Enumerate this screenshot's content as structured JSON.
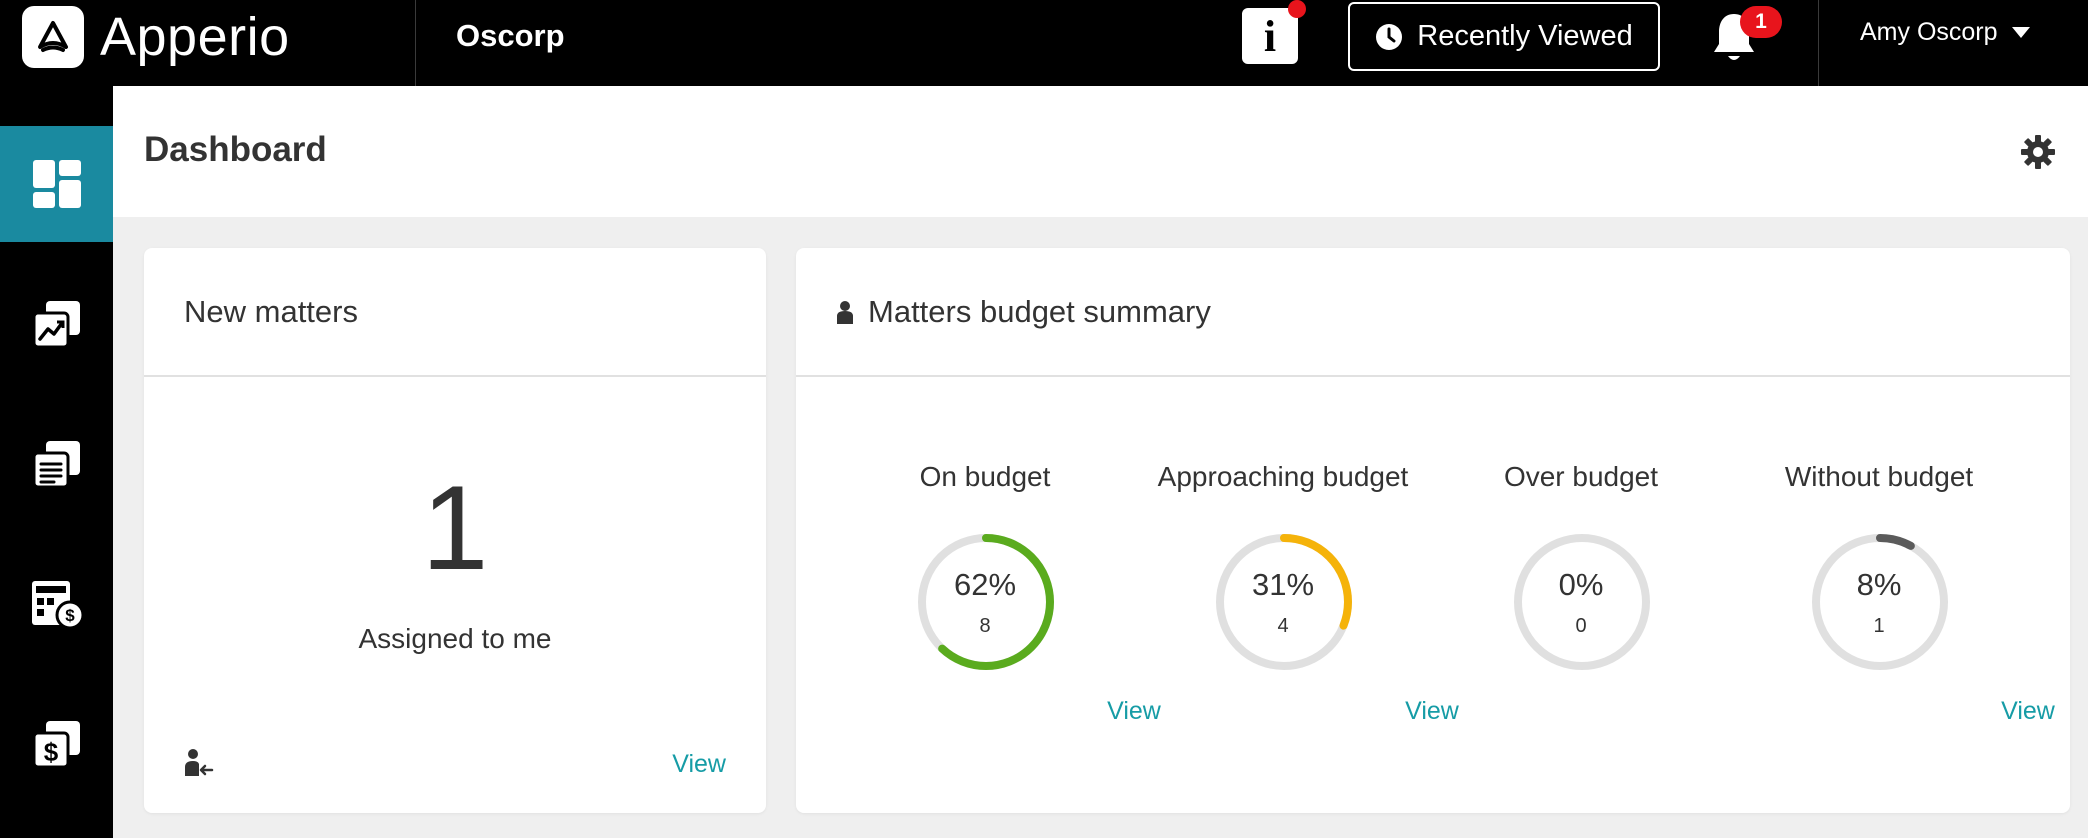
{
  "brand": {
    "name": "Apperio"
  },
  "header": {
    "org": "Oscorp",
    "info_label": "i",
    "recently_viewed": "Recently Viewed",
    "notifications_count": "1",
    "user_name": "Amy Oscorp"
  },
  "sidebar": {
    "items": [
      {
        "icon": "dashboard-icon",
        "active": true
      },
      {
        "icon": "analytics-icon",
        "active": false
      },
      {
        "icon": "matters-list-icon",
        "active": false
      },
      {
        "icon": "budget-calculator-icon",
        "active": false
      },
      {
        "icon": "invoices-icon",
        "active": false
      }
    ]
  },
  "page": {
    "title": "Dashboard"
  },
  "new_matters": {
    "title": "New matters",
    "count": "1",
    "subtitle": "Assigned to me",
    "view": "View"
  },
  "budget_summary": {
    "title": "Matters budget summary",
    "gauges": [
      {
        "label": "On budget",
        "pct_text": "62%",
        "count": "8",
        "fraction": 0.62,
        "color": "#5aab1e",
        "view": "View"
      },
      {
        "label": "Approaching budget",
        "pct_text": "31%",
        "count": "4",
        "fraction": 0.31,
        "color": "#f5b30a",
        "view": "View"
      },
      {
        "label": "Over budget",
        "pct_text": "0%",
        "count": "0",
        "fraction": 0.0,
        "color": "#e8141c",
        "view": ""
      },
      {
        "label": "Without budget",
        "pct_text": "8%",
        "count": "1",
        "fraction": 0.08,
        "color": "#5b5b5b",
        "view": "View"
      }
    ]
  },
  "colors": {
    "accent": "#1a8aa0",
    "link": "#169ca6",
    "ring_track": "#e0e0e0"
  }
}
